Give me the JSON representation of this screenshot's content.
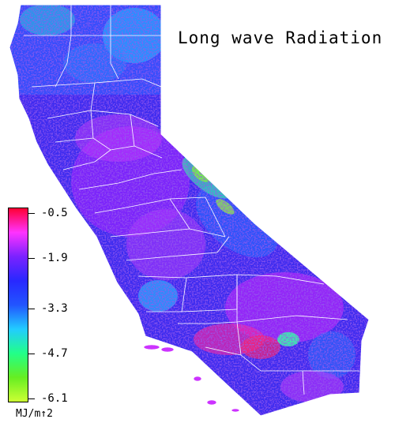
{
  "map": {
    "title": "Long wave Radiation",
    "region": "California",
    "variable": "long wave radiation"
  },
  "legend": {
    "ticks": [
      "-0.5",
      "-1.9",
      "-3.3",
      "-4.7",
      "-6.1"
    ],
    "unit": "MJ/m↑2",
    "colors": [
      "#ff0033",
      "#ff33ff",
      "#7a22ff",
      "#2828ff",
      "#2255ff",
      "#22ccff",
      "#22ff88",
      "#66ee22",
      "#ccff33"
    ]
  }
}
